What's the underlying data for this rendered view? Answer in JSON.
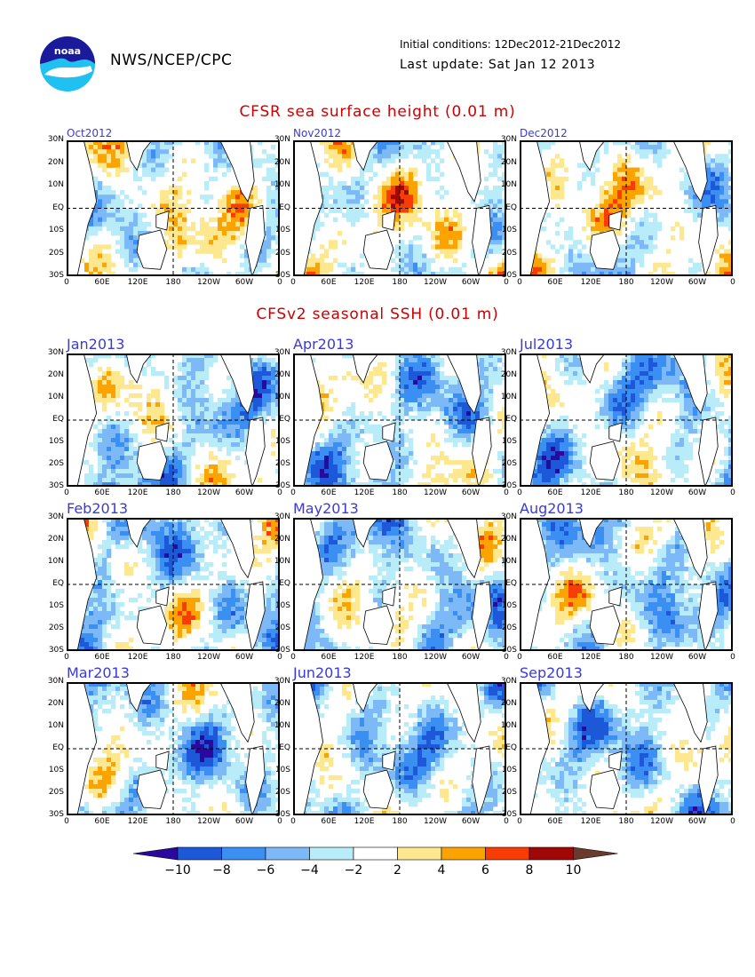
{
  "header": {
    "agency": "NWS/NCEP/CPC",
    "logo_text": "noaa",
    "initial_conditions": "Initial conditions: 12Dec2012-21Dec2012",
    "last_update": "Last update: Sat Jan 12 2013"
  },
  "observed": {
    "title": "CFSR sea surface height (0.01 m)",
    "panels": [
      {
        "label": "Oct2012"
      },
      {
        "label": "Nov2012"
      },
      {
        "label": "Dec2012"
      }
    ]
  },
  "forecast": {
    "title": "CFSv2 seasonal SSH (0.01 m)",
    "panels": [
      {
        "label": "Jan2013"
      },
      {
        "label": "Apr2013"
      },
      {
        "label": "Jul2013"
      },
      {
        "label": "Feb2013"
      },
      {
        "label": "May2013"
      },
      {
        "label": "Aug2013"
      },
      {
        "label": "Mar2013"
      },
      {
        "label": "Jun2013"
      },
      {
        "label": "Sep2013"
      }
    ]
  },
  "axes": {
    "lat_labels": [
      "30N",
      "20N",
      "10N",
      "EQ",
      "10S",
      "20S",
      "30S"
    ],
    "lon_labels": [
      "0",
      "60E",
      "120E",
      "180",
      "120W",
      "60W",
      "0"
    ]
  },
  "colorbar": {
    "labels": [
      "−10",
      "−8",
      "−6",
      "−4",
      "−2",
      "2",
      "4",
      "6",
      "8",
      "10"
    ],
    "colors": [
      "#2a0a9c",
      "#1c58d8",
      "#3b8ff2",
      "#7eb9f7",
      "#b7ecf8",
      "#ffffff",
      "#fde890",
      "#fba300",
      "#f83c06",
      "#a00808",
      "#6b3a2e"
    ]
  }
}
